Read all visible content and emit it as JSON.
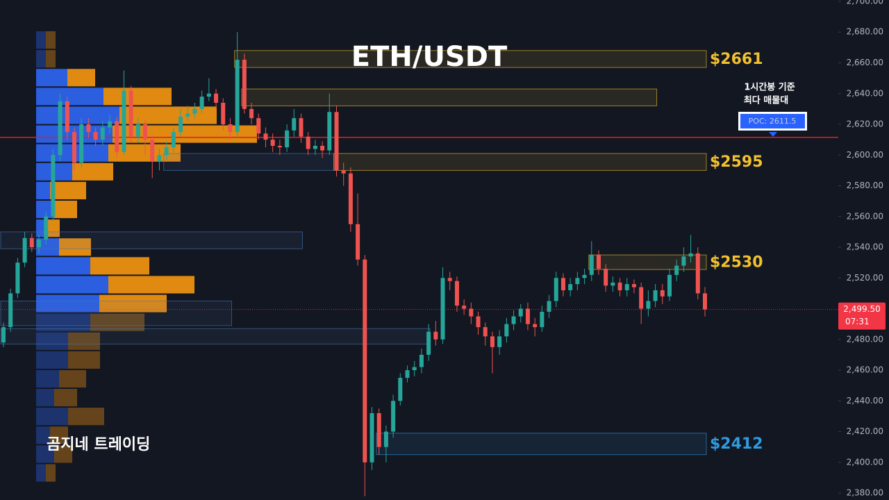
{
  "chart_data": {
    "type": "candlestick",
    "title": "ETH/USDT",
    "watermark": "곰지네 트레이딩",
    "ylim": [
      2375.5,
      2700.9
    ],
    "yticks": [
      {
        "value": 2380,
        "label": "2,380.00"
      },
      {
        "value": 2400,
        "label": "2,400.00"
      },
      {
        "value": 2420,
        "label": "2,420.00"
      },
      {
        "value": 2440,
        "label": "2,440.00"
      },
      {
        "value": 2460,
        "label": "2,460.00"
      },
      {
        "value": 2480,
        "label": "2,480.00"
      },
      {
        "value": 2500,
        "label": "2,500.00"
      },
      {
        "value": 2520,
        "label": "2,520.00"
      },
      {
        "value": 2540,
        "label": "2,540.00"
      },
      {
        "value": 2560,
        "label": "2,560.00"
      },
      {
        "value": 2580,
        "label": "2,580.00"
      },
      {
        "value": 2600,
        "label": "2,600.00"
      },
      {
        "value": 2620,
        "label": "2,620.00"
      },
      {
        "value": 2640,
        "label": "2,640.00"
      },
      {
        "value": 2660,
        "label": "2,660.00"
      },
      {
        "value": 2680,
        "label": "2,680.00"
      },
      {
        "value": 2700,
        "label": "2,700.00"
      }
    ],
    "up_color": "#26a69a",
    "down_color": "#ef5350",
    "open": [
      2478,
      2488,
      2510,
      2530,
      2546,
      2540,
      2545,
      2560,
      2600,
      2635,
      2615,
      2595,
      2620,
      2615,
      2610,
      2618,
      2622,
      2602,
      2642,
      2612,
      2620,
      2610,
      2596,
      2600,
      2605,
      2615,
      2625,
      2627,
      2630,
      2638,
      2640,
      2634,
      2620,
      2615,
      2662,
      2630,
      2624,
      2614,
      2610,
      2606,
      2605,
      2616,
      2624,
      2612,
      2604,
      2606,
      2603,
      2628,
      2590,
      2588,
      2555,
      2532,
      2400,
      2432,
      2410,
      2420,
      2440,
      2455,
      2460,
      2462,
      2470,
      2485,
      2480,
      2520,
      2518,
      2502,
      2500,
      2495,
      2488,
      2482,
      2475,
      2482,
      2490,
      2495,
      2500,
      2490,
      2488,
      2498,
      2505,
      2520,
      2512,
      2516,
      2520,
      2522,
      2535,
      2526,
      2515,
      2517,
      2512,
      2516,
      2514,
      2500,
      2505,
      2512,
      2508,
      2522,
      2528,
      2534,
      2536,
      2510
    ],
    "high": [
      2491,
      2513,
      2533,
      2550,
      2549,
      2548,
      2563,
      2604,
      2640,
      2638,
      2618,
      2624,
      2624,
      2618,
      2622,
      2626,
      2625,
      2655,
      2645,
      2624,
      2623,
      2613,
      2604,
      2609,
      2618,
      2630,
      2632,
      2634,
      2642,
      2650,
      2643,
      2637,
      2624,
      2680,
      2666,
      2634,
      2627,
      2618,
      2614,
      2610,
      2620,
      2630,
      2627,
      2615,
      2610,
      2609,
      2640,
      2632,
      2595,
      2592,
      2575,
      2535,
      2436,
      2435,
      2424,
      2444,
      2458,
      2463,
      2466,
      2474,
      2490,
      2492,
      2527,
      2524,
      2521,
      2506,
      2504,
      2498,
      2491,
      2485,
      2486,
      2494,
      2499,
      2503,
      2504,
      2494,
      2502,
      2509,
      2524,
      2523,
      2520,
      2524,
      2526,
      2544,
      2538,
      2529,
      2521,
      2520,
      2520,
      2519,
      2517,
      2512,
      2516,
      2516,
      2526,
      2532,
      2540,
      2548,
      2540,
      2514
    ],
    "low": [
      2475,
      2485,
      2507,
      2527,
      2537,
      2536,
      2542,
      2557,
      2596,
      2610,
      2590,
      2592,
      2611,
      2606,
      2606,
      2614,
      2598,
      2600,
      2608,
      2608,
      2600,
      2585,
      2590,
      2597,
      2602,
      2612,
      2622,
      2624,
      2627,
      2635,
      2630,
      2616,
      2610,
      2612,
      2627,
      2620,
      2610,
      2605,
      2602,
      2600,
      2602,
      2612,
      2608,
      2600,
      2600,
      2598,
      2600,
      2586,
      2580,
      2550,
      2528,
      2378,
      2395,
      2405,
      2400,
      2416,
      2437,
      2452,
      2456,
      2458,
      2466,
      2476,
      2477,
      2512,
      2498,
      2496,
      2490,
      2483,
      2476,
      2458,
      2470,
      2478,
      2486,
      2491,
      2486,
      2482,
      2485,
      2494,
      2501,
      2508,
      2508,
      2512,
      2516,
      2518,
      2522,
      2511,
      2511,
      2508,
      2508,
      2510,
      2490,
      2495,
      2501,
      2503,
      2505,
      2518,
      2524,
      2530,
      2506,
      2495
    ],
    "close": [
      2488,
      2510,
      2530,
      2546,
      2540,
      2545,
      2560,
      2600,
      2635,
      2615,
      2595,
      2620,
      2615,
      2610,
      2618,
      2622,
      2602,
      2642,
      2612,
      2620,
      2610,
      2596,
      2600,
      2605,
      2615,
      2625,
      2627,
      2630,
      2638,
      2640,
      2634,
      2620,
      2615,
      2662,
      2630,
      2624,
      2614,
      2610,
      2606,
      2605,
      2616,
      2624,
      2612,
      2604,
      2606,
      2603,
      2628,
      2590,
      2588,
      2555,
      2532,
      2400,
      2432,
      2410,
      2420,
      2440,
      2455,
      2460,
      2462,
      2470,
      2485,
      2480,
      2520,
      2518,
      2502,
      2500,
      2495,
      2488,
      2482,
      2475,
      2482,
      2490,
      2495,
      2500,
      2490,
      2488,
      2498,
      2505,
      2520,
      2512,
      2516,
      2520,
      2522,
      2535,
      2526,
      2515,
      2517,
      2512,
      2516,
      2514,
      2500,
      2505,
      2512,
      2508,
      2522,
      2528,
      2534,
      2536,
      2510,
      2499.5
    ],
    "volume_profile": {
      "bins": [
        2681,
        2668.75,
        2656.5,
        2644.25,
        2632,
        2619.75,
        2607.5,
        2595.25,
        2583,
        2570.75,
        2558.5,
        2546.25,
        2534,
        2521.75,
        2509.5,
        2497.25,
        2485,
        2472.75,
        2460.5,
        2448.25,
        2436,
        2423.75,
        2411.5,
        2399.25,
        2387
      ],
      "buy": [
        14,
        14,
        45,
        97,
        120,
        110,
        104,
        52,
        20,
        26,
        14,
        33,
        78,
        104,
        91,
        78,
        46,
        46,
        33,
        26,
        46,
        20,
        26,
        14
      ],
      "sell": [
        14,
        14,
        40,
        98,
        140,
        208,
        104,
        59,
        52,
        33,
        20,
        46,
        85,
        124,
        97,
        78,
        46,
        46,
        39,
        33,
        52,
        26,
        26,
        14
      ],
      "buy_color": "#2b5fe0",
      "sell_color": "#e08a12",
      "value_area": [
        2497.25,
        2656.5
      ]
    },
    "zones": [
      {
        "label": "$2661",
        "low": 2657,
        "high": 2668,
        "from": 33,
        "to": 99,
        "color": "#f2c12e"
      },
      {
        "low": 2632,
        "high": 2643,
        "from": 34,
        "to": 92,
        "color": "#f2c12e"
      },
      {
        "label": "$2595",
        "low": 2590,
        "high": 2601,
        "from": 47,
        "to": 99,
        "color": "#f2c12e"
      },
      {
        "label": "$2530",
        "low": 2525.5,
        "high": 2535,
        "from": 83,
        "to": 99,
        "color": "#f2c12e"
      },
      {
        "label": "$2412",
        "low": 2405,
        "high": 2419,
        "from": 53,
        "to": 99,
        "color": "#2f9be0"
      },
      {
        "low": 2539,
        "high": 2550,
        "from": 0,
        "to": 42,
        "color": "#4a78b0"
      },
      {
        "low": 2489,
        "high": 2505,
        "from": 0,
        "to": 32,
        "color": "#4a78b0"
      },
      {
        "low": 2477,
        "high": 2487,
        "from": 0,
        "to": 60,
        "color": "#4a78b0"
      },
      {
        "low": 2590,
        "high": 2601,
        "from": 23,
        "to": 47,
        "color": "#4a78b0"
      }
    ],
    "poc": {
      "value": 2611.5,
      "label": "POC: 2611.5",
      "color": "#e01e1e",
      "note": [
        "1시간봉 기준",
        "최다 매물대"
      ]
    },
    "last_price": {
      "value": 2499.5,
      "label": "2,499.50",
      "countdown": "07:31",
      "color": "#f23645"
    }
  }
}
